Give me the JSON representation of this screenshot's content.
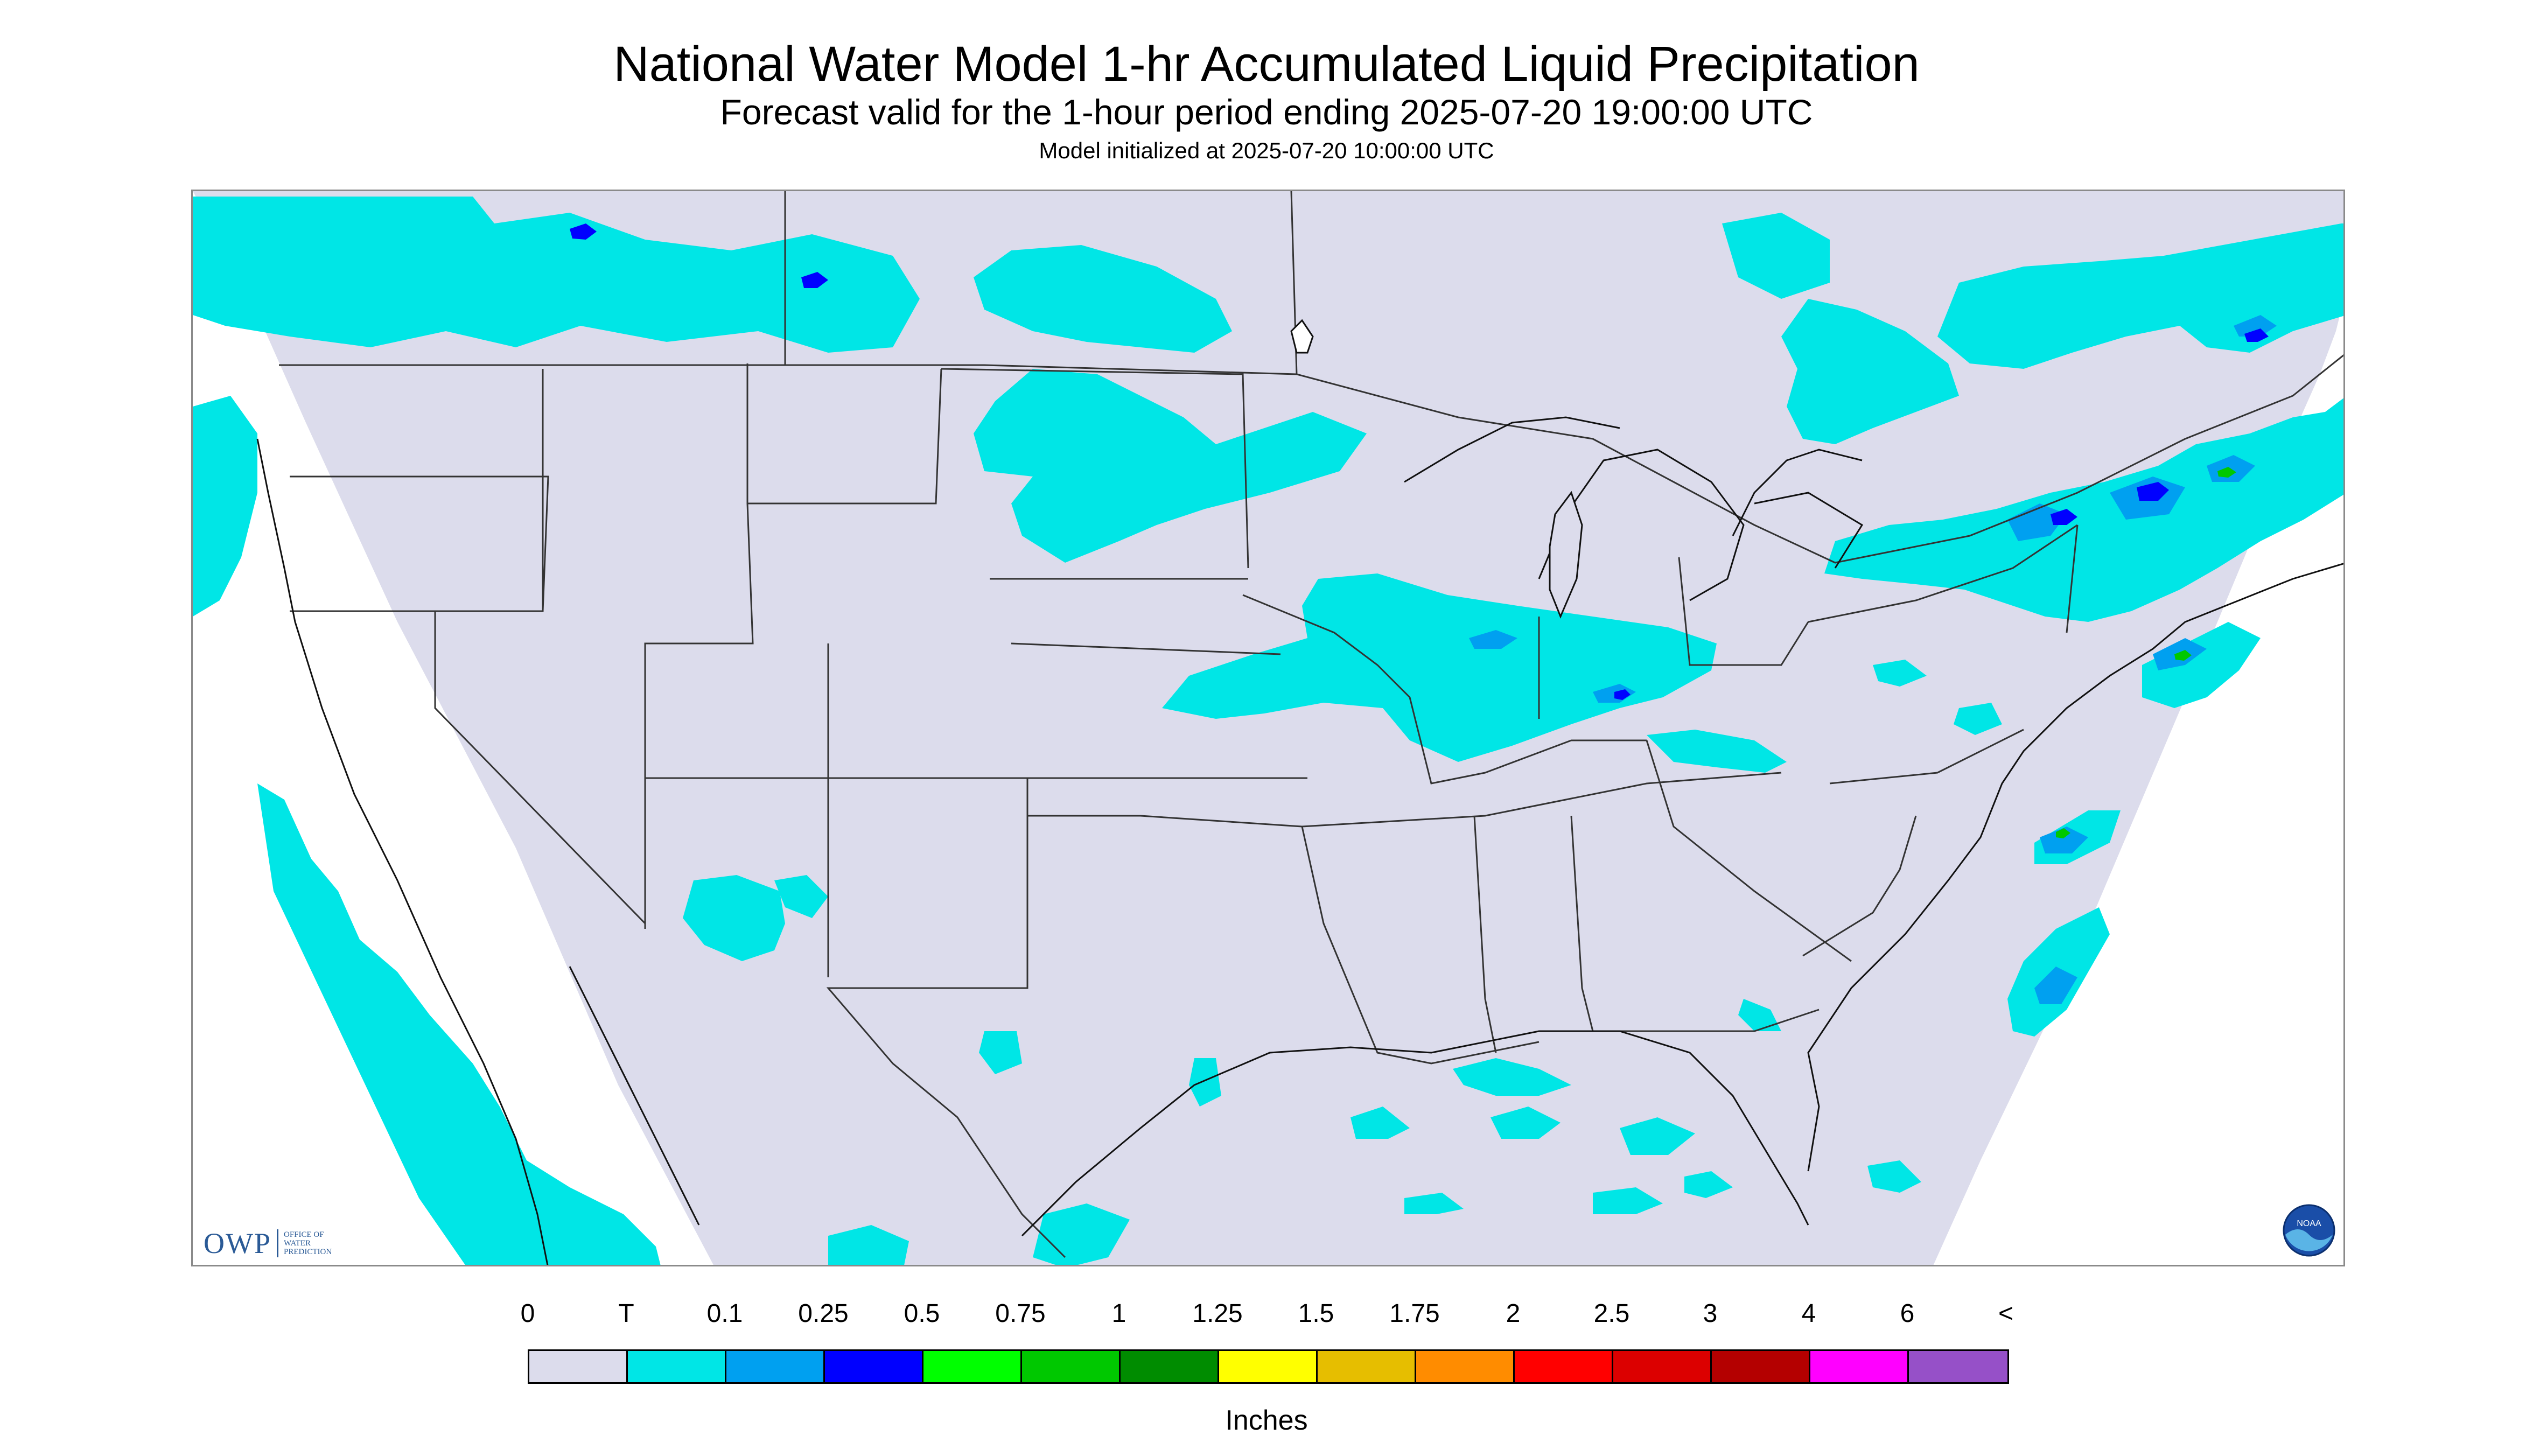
{
  "header": {
    "title": "National Water Model 1-hr Accumulated Liquid Precipitation",
    "subtitle": "Forecast valid for the 1-hour period ending 2025-07-20 19:00:00 UTC",
    "init_line": "Model initialized at 2025-07-20 10:00:00 UTC"
  },
  "logos": {
    "owp": {
      "mark": "OWP",
      "text_lines": [
        "Office of",
        "Water",
        "Prediction"
      ]
    },
    "noaa": "NOAA"
  },
  "map": {
    "background_color": "#dcdcec",
    "outside_domain_color": "#ffffff",
    "boundary_color": "#222222",
    "regions_with_trace_precip": [
      "Pacific Ocean off California and Baja",
      "Pacific Northwest coast",
      "Southern Canada prairies",
      "North Dakota and Minnesota",
      "Iowa, Illinois, Indiana, Ohio",
      "Ontario and Quebec",
      "New York and New England",
      "Mid-Atlantic coast",
      "Gulf of Mexico",
      "Western Atlantic",
      "Arizona and New Mexico"
    ],
    "regions_with_higher_precip": [
      "New England",
      "Southern Quebec",
      "Lake Michigan area",
      "Western Atlantic offshore"
    ]
  },
  "legend": {
    "tick_labels": [
      "0",
      "T",
      "0.1",
      "0.25",
      "0.5",
      "0.75",
      "1",
      "1.25",
      "1.5",
      "1.75",
      "2",
      "2.5",
      "3",
      "4",
      "6",
      "<"
    ],
    "colors": [
      "#dcdcec",
      "#00e6e6",
      "#00a0f0",
      "#0000ff",
      "#00ff00",
      "#00c800",
      "#008c00",
      "#ffff00",
      "#e6be00",
      "#ff8c00",
      "#ff0000",
      "#dc0000",
      "#b40000",
      "#ff00ff",
      "#9650c8"
    ],
    "unit_label": "Inches"
  }
}
